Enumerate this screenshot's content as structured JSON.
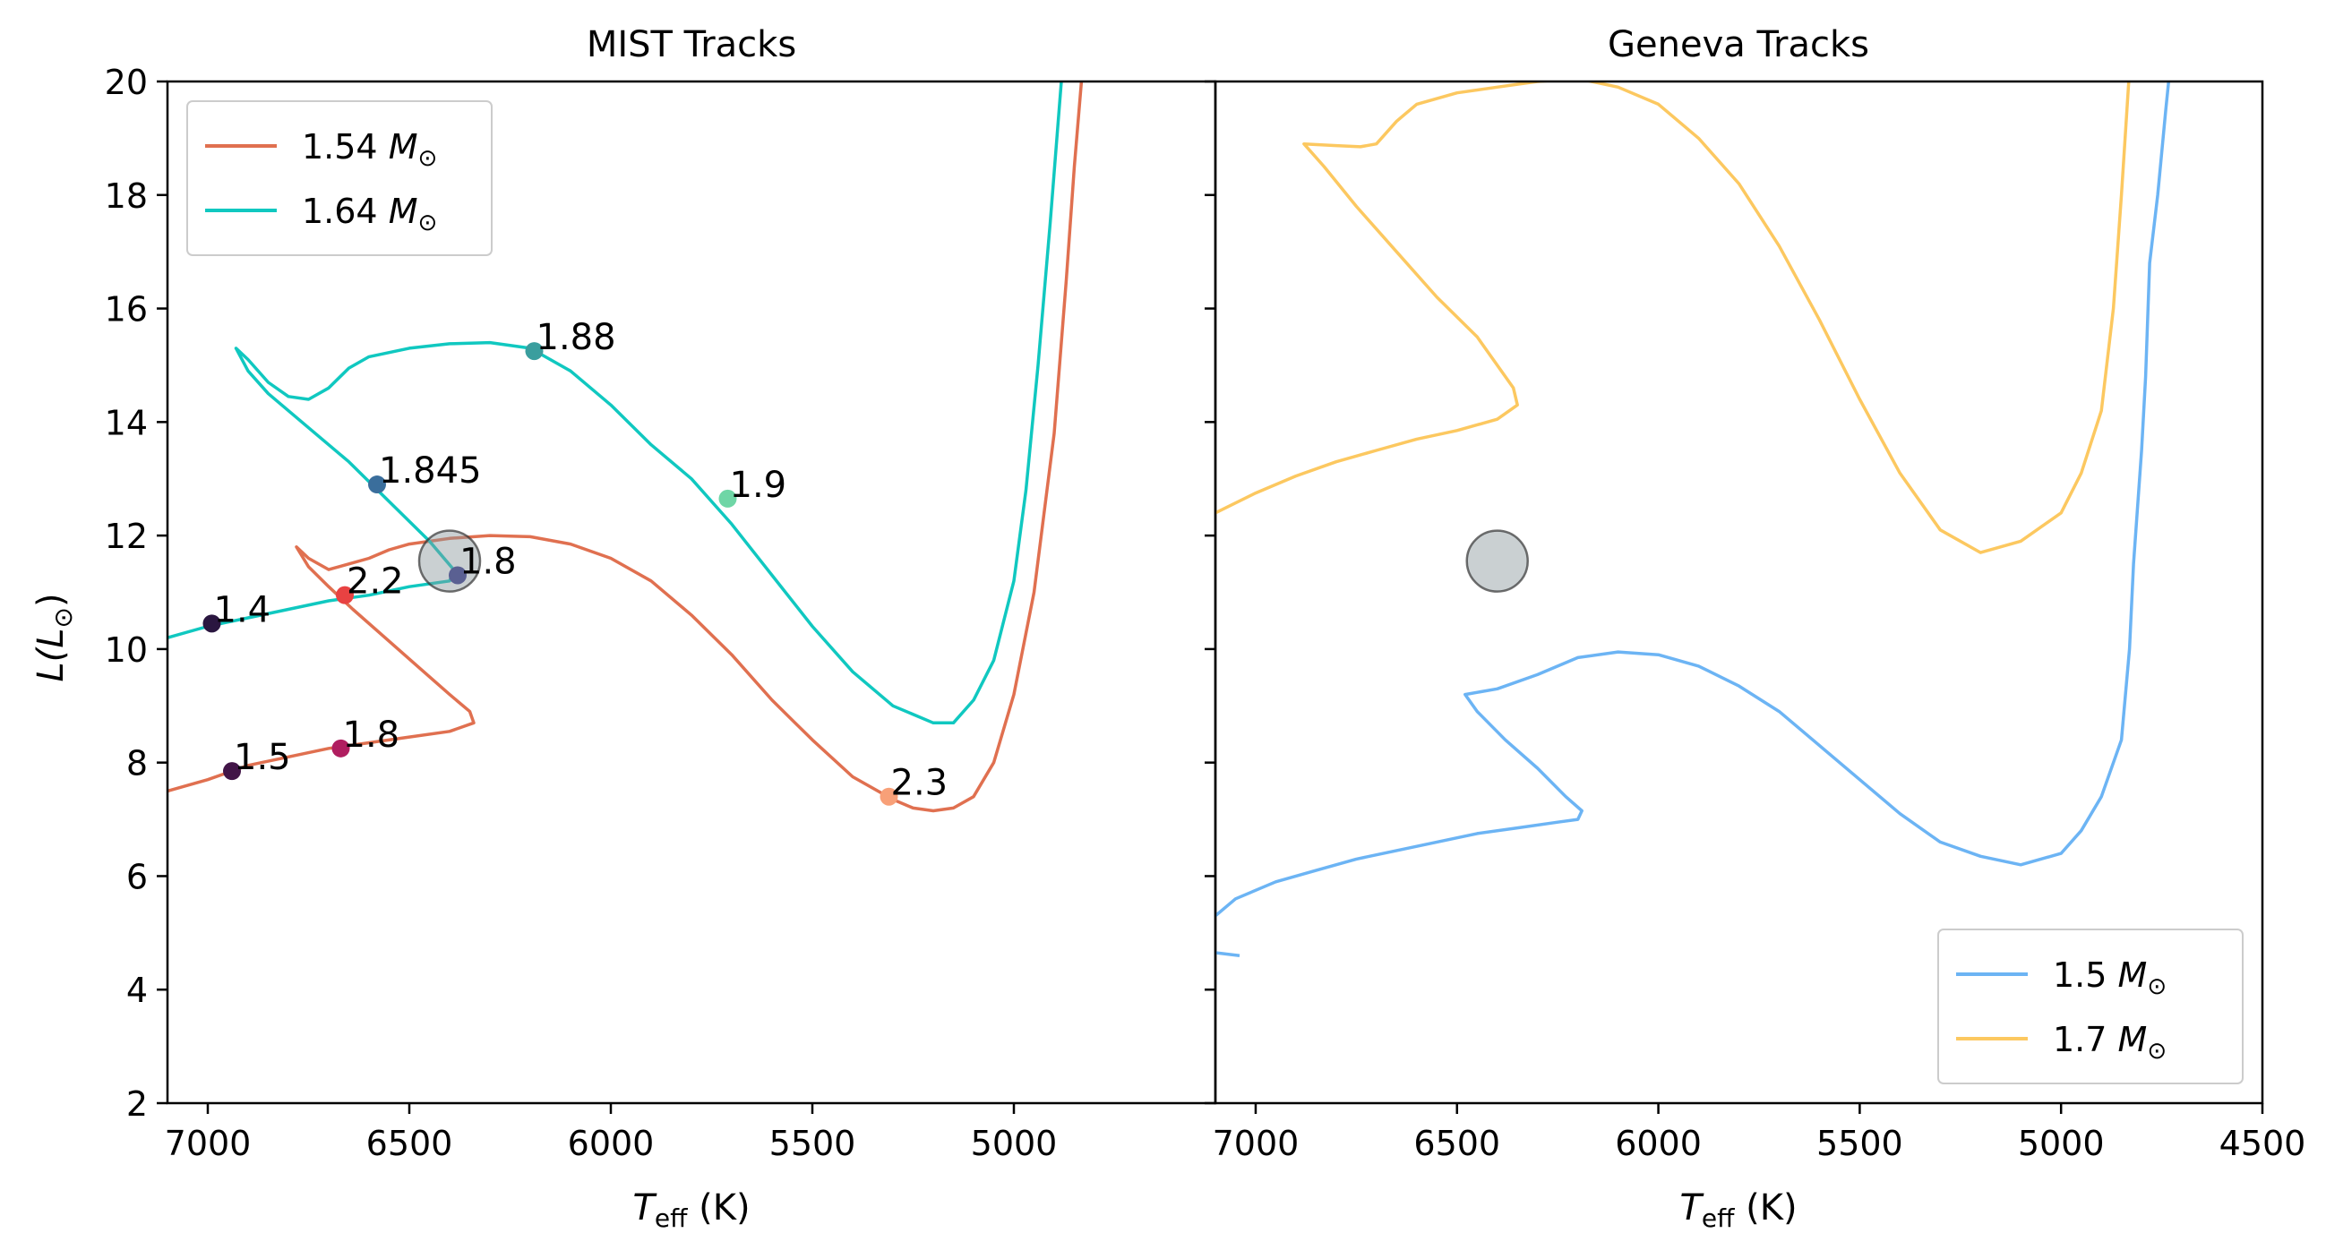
{
  "figure": {
    "ylabel_main": "L(L",
    "ylabel_sub": "⊙",
    "ylabel_close": ")",
    "xlabel_main": "T",
    "xlabel_sub": "eff",
    "xlabel_unit": " (K)"
  },
  "chart_data": [
    {
      "type": "line",
      "title": "MIST Tracks",
      "xlim": [
        7100,
        4500
      ],
      "ylim": [
        2,
        20
      ],
      "xticks": [
        7000,
        6500,
        6000,
        5500,
        5000
      ],
      "yticks": [
        2,
        4,
        6,
        8,
        10,
        12,
        14,
        16,
        18,
        20
      ],
      "legend": "top-left",
      "series": [
        {
          "name": "1.54 M⊙",
          "label_num": "1.54",
          "color": "#e07050",
          "points": [
            [
              7100,
              7.5
            ],
            [
              7000,
              7.7
            ],
            [
              6900,
              7.95
            ],
            [
              6800,
              8.1
            ],
            [
              6700,
              8.25
            ],
            [
              6600,
              8.35
            ],
            [
              6500,
              8.45
            ],
            [
              6400,
              8.55
            ],
            [
              6340,
              8.7
            ],
            [
              6350,
              8.9
            ],
            [
              6400,
              9.2
            ],
            [
              6480,
              9.7
            ],
            [
              6560,
              10.2
            ],
            [
              6640,
              10.7
            ],
            [
              6700,
              11.1
            ],
            [
              6750,
              11.45
            ],
            [
              6780,
              11.8
            ],
            [
              6750,
              11.6
            ],
            [
              6700,
              11.4
            ],
            [
              6650,
              11.5
            ],
            [
              6600,
              11.6
            ],
            [
              6550,
              11.75
            ],
            [
              6500,
              11.85
            ],
            [
              6400,
              11.95
            ],
            [
              6300,
              12.0
            ],
            [
              6200,
              11.98
            ],
            [
              6100,
              11.85
            ],
            [
              6000,
              11.6
            ],
            [
              5900,
              11.2
            ],
            [
              5800,
              10.6
            ],
            [
              5700,
              9.9
            ],
            [
              5600,
              9.1
            ],
            [
              5500,
              8.4
            ],
            [
              5400,
              7.75
            ],
            [
              5300,
              7.35
            ],
            [
              5250,
              7.2
            ],
            [
              5200,
              7.15
            ],
            [
              5150,
              7.2
            ],
            [
              5100,
              7.4
            ],
            [
              5050,
              8.0
            ],
            [
              5000,
              9.2
            ],
            [
              4950,
              11.0
            ],
            [
              4900,
              13.8
            ],
            [
              4870,
              16.5
            ],
            [
              4850,
              18.5
            ],
            [
              4830,
              20.2
            ]
          ]
        },
        {
          "name": "1.64 M⊙",
          "label_num": "1.64",
          "color": "#10c8c0",
          "points": [
            [
              7100,
              10.2
            ],
            [
              7000,
              10.4
            ],
            [
              6900,
              10.55
            ],
            [
              6800,
              10.7
            ],
            [
              6700,
              10.85
            ],
            [
              6600,
              10.95
            ],
            [
              6500,
              11.1
            ],
            [
              6400,
              11.2
            ],
            [
              6390,
              11.4
            ],
            [
              6450,
              11.9
            ],
            [
              6550,
              12.6
            ],
            [
              6650,
              13.3
            ],
            [
              6750,
              13.9
            ],
            [
              6850,
              14.5
            ],
            [
              6900,
              14.9
            ],
            [
              6930,
              15.3
            ],
            [
              6900,
              15.1
            ],
            [
              6850,
              14.7
            ],
            [
              6800,
              14.45
            ],
            [
              6750,
              14.4
            ],
            [
              6700,
              14.6
            ],
            [
              6650,
              14.95
            ],
            [
              6600,
              15.15
            ],
            [
              6500,
              15.3
            ],
            [
              6400,
              15.38
            ],
            [
              6300,
              15.4
            ],
            [
              6200,
              15.3
            ],
            [
              6100,
              14.9
            ],
            [
              6000,
              14.3
            ],
            [
              5900,
              13.6
            ],
            [
              5800,
              13.0
            ],
            [
              5700,
              12.2
            ],
            [
              5600,
              11.3
            ],
            [
              5500,
              10.4
            ],
            [
              5400,
              9.6
            ],
            [
              5300,
              9.0
            ],
            [
              5200,
              8.7
            ],
            [
              5150,
              8.7
            ],
            [
              5100,
              9.1
            ],
            [
              5050,
              9.8
            ],
            [
              5000,
              11.2
            ],
            [
              4970,
              12.8
            ],
            [
              4940,
              15.0
            ],
            [
              4910,
              17.5
            ],
            [
              4880,
              20.2
            ]
          ]
        }
      ],
      "markers": [
        {
          "label": "1.88",
          "t": 6190,
          "l": 15.25,
          "color": "#3a9e9e"
        },
        {
          "label": "1.845",
          "t": 6580,
          "l": 12.9,
          "color": "#3a6e9c"
        },
        {
          "label": "1.9",
          "t": 5710,
          "l": 12.65,
          "color": "#6fd6a6"
        },
        {
          "label": "1.8",
          "t": 6380,
          "l": 11.3,
          "color": "#5a6092"
        },
        {
          "label": "2.2",
          "t": 6660,
          "l": 10.95,
          "color": "#e84242"
        },
        {
          "label": "1.4",
          "t": 6990,
          "l": 10.45,
          "color": "#2a1640"
        },
        {
          "label": "1.8",
          "t": 6670,
          "l": 8.25,
          "color": "#b01e60"
        },
        {
          "label": "1.5",
          "t": 6940,
          "l": 7.85,
          "color": "#421548"
        },
        {
          "label": "2.3",
          "t": 5310,
          "l": 7.4,
          "color": "#f8a078"
        }
      ],
      "star": {
        "t": 6400,
        "l": 11.55
      }
    },
    {
      "type": "line",
      "title": "Geneva Tracks",
      "xlim": [
        7100,
        4500
      ],
      "ylim": [
        2,
        20
      ],
      "xticks": [
        7000,
        6500,
        6000,
        5500,
        5000,
        4500
      ],
      "legend": "bottom-right",
      "series": [
        {
          "name": "1.5 M⊙",
          "label_num": "1.5",
          "color": "#6cb4f4",
          "segments": [
            [
              [
                7100,
                4.65
              ],
              [
                7040,
                4.6
              ]
            ],
            [
              [
                7100,
                5.3
              ],
              [
                7050,
                5.6
              ],
              [
                6950,
                5.9
              ],
              [
                6850,
                6.1
              ],
              [
                6750,
                6.3
              ],
              [
                6650,
                6.45
              ],
              [
                6550,
                6.6
              ],
              [
                6450,
                6.75
              ],
              [
                6350,
                6.85
              ],
              [
                6250,
                6.95
              ],
              [
                6200,
                7.0
              ],
              [
                6190,
                7.15
              ],
              [
                6230,
                7.4
              ],
              [
                6300,
                7.9
              ],
              [
                6380,
                8.4
              ],
              [
                6450,
                8.9
              ],
              [
                6480,
                9.2
              ],
              [
                6400,
                9.3
              ],
              [
                6300,
                9.55
              ],
              [
                6200,
                9.85
              ],
              [
                6100,
                9.95
              ],
              [
                6000,
                9.9
              ],
              [
                5900,
                9.7
              ],
              [
                5800,
                9.35
              ],
              [
                5700,
                8.9
              ],
              [
                5600,
                8.3
              ],
              [
                5500,
                7.7
              ],
              [
                5400,
                7.1
              ],
              [
                5300,
                6.6
              ],
              [
                5200,
                6.35
              ],
              [
                5100,
                6.2
              ],
              [
                5000,
                6.4
              ],
              [
                4950,
                6.8
              ],
              [
                4900,
                7.4
              ],
              [
                4850,
                8.4
              ],
              [
                4830,
                10.0
              ],
              [
                4820,
                11.5
              ],
              [
                4800,
                13.5
              ],
              [
                4790,
                14.8
              ],
              [
                4780,
                16.8
              ],
              [
                4760,
                18.0
              ],
              [
                4740,
                19.5
              ],
              [
                4730,
                20.2
              ]
            ]
          ]
        },
        {
          "name": "1.7 M⊙",
          "label_num": "1.7",
          "color": "#fcc860",
          "segments": [
            [
              [
                7100,
                12.4
              ],
              [
                7000,
                12.75
              ],
              [
                6900,
                13.05
              ],
              [
                6800,
                13.3
              ],
              [
                6700,
                13.5
              ],
              [
                6600,
                13.7
              ],
              [
                6500,
                13.85
              ],
              [
                6400,
                14.05
              ],
              [
                6350,
                14.3
              ],
              [
                6360,
                14.6
              ],
              [
                6400,
                15.0
              ],
              [
                6450,
                15.5
              ],
              [
                6550,
                16.2
              ],
              [
                6650,
                17.0
              ],
              [
                6750,
                17.8
              ],
              [
                6830,
                18.5
              ],
              [
                6880,
                18.9
              ],
              [
                6800,
                18.87
              ],
              [
                6740,
                18.85
              ],
              [
                6700,
                18.9
              ],
              [
                6650,
                19.3
              ],
              [
                6600,
                19.6
              ],
              [
                6500,
                19.8
              ],
              [
                6400,
                19.9
              ],
              [
                6300,
                20.0
              ],
              [
                6200,
                20.05
              ],
              [
                6100,
                19.9
              ],
              [
                6000,
                19.6
              ],
              [
                5900,
                19.0
              ],
              [
                5800,
                18.2
              ],
              [
                5700,
                17.1
              ],
              [
                5600,
                15.8
              ],
              [
                5500,
                14.4
              ],
              [
                5400,
                13.1
              ],
              [
                5300,
                12.1
              ],
              [
                5200,
                11.7
              ],
              [
                5100,
                11.9
              ],
              [
                5000,
                12.4
              ],
              [
                4950,
                13.1
              ],
              [
                4900,
                14.2
              ],
              [
                4870,
                16.0
              ],
              [
                4850,
                18.0
              ],
              [
                4830,
                20.2
              ]
            ]
          ]
        }
      ],
      "star": {
        "t": 6400,
        "l": 11.55
      }
    }
  ]
}
